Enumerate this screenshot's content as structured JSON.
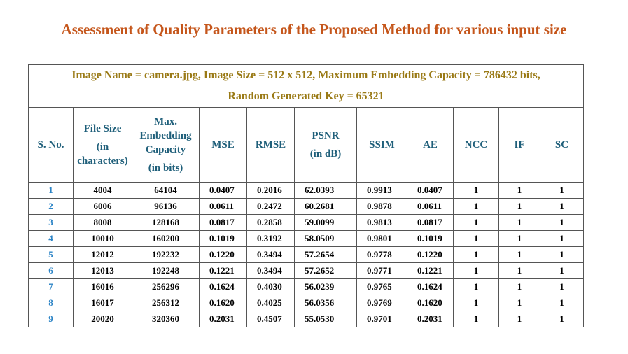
{
  "title": "Assessment of Quality Parameters of the Proposed Method for various input size",
  "caption": {
    "line1": "Image Name = camera.jpg, Image Size = 512 x 512, Maximum Embedding Capacity = 786432 bits,",
    "line2": "Random Generated Key = 65321"
  },
  "headers": {
    "sno": "S. No.",
    "file_size": [
      "File Size",
      "(in",
      "characters)"
    ],
    "max_cap": [
      "Max.",
      "Embedding",
      "Capacity",
      "(in bits)"
    ],
    "mse": "MSE",
    "rmse": "RMSE",
    "psnr": [
      "PSNR",
      "(in dB)"
    ],
    "ssim": "SSIM",
    "ae": "AE",
    "ncc": "NCC",
    "if": "IF",
    "sc": "SC"
  },
  "rows": [
    [
      "1",
      "4004",
      "64104",
      "0.0407",
      "0.2016",
      "62.0393",
      "0.9913",
      "0.0407",
      "1",
      "1",
      "1"
    ],
    [
      "2",
      "6006",
      "96136",
      "0.0611",
      "0.2472",
      "60.2681",
      "0.9878",
      "0.0611",
      "1",
      "1",
      "1"
    ],
    [
      "3",
      "8008",
      "128168",
      "0.0817",
      "0.2858",
      "59.0099",
      "0.9813",
      "0.0817",
      "1",
      "1",
      "1"
    ],
    [
      "4",
      "10010",
      "160200",
      "0.1019",
      "0.3192",
      "58.0509",
      "0.9801",
      "0.1019",
      "1",
      "1",
      "1"
    ],
    [
      "5",
      "12012",
      "192232",
      "0.1220",
      "0.3494",
      "57.2654",
      "0.9778",
      "0.1220",
      "1",
      "1",
      "1"
    ],
    [
      "6",
      "12013",
      "192248",
      "0.1221",
      "0.3494",
      "57.2652",
      "0.9771",
      "0.1221",
      "1",
      "1",
      "1"
    ],
    [
      "7",
      "16016",
      "256296",
      "0.1624",
      "0.4030",
      "56.0239",
      "0.9765",
      "0.1624",
      "1",
      "1",
      "1"
    ],
    [
      "8",
      "16017",
      "256312",
      "0.1620",
      "0.4025",
      "56.0356",
      "0.9769",
      "0.1620",
      "1",
      "1",
      "1"
    ],
    [
      "9",
      "20020",
      "320360",
      "0.2031",
      "0.4507",
      "55.0530",
      "0.9701",
      "0.2031",
      "1",
      "1",
      "1"
    ]
  ],
  "colors": {
    "title": "#c5561b",
    "caption": "#9a7a16",
    "header": "#1f5f7a",
    "serial": "#2c84c6"
  }
}
